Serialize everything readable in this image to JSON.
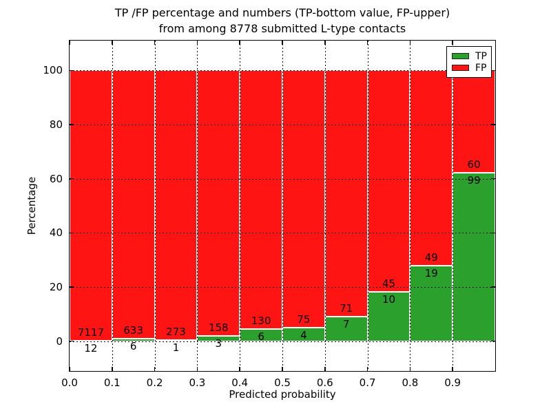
{
  "chart_data": {
    "type": "bar",
    "stacked": true,
    "normalized_to_percent": true,
    "title": "TP /FP percentage and numbers (TP-bottom value, FP-upper)",
    "subtitle": "from among 8778 submitted L-type contacts",
    "xlabel": "Predicted probability",
    "ylabel": "Percentage",
    "total_submitted": 8778,
    "x_tick_labels": [
      "0.0",
      "0.1",
      "0.2",
      "0.3",
      "0.4",
      "0.5",
      "0.6",
      "0.7",
      "0.8",
      "0.9"
    ],
    "y_ticks": [
      0,
      20,
      40,
      60,
      80,
      100
    ],
    "xlim": [
      0,
      1
    ],
    "ylim": [
      -11,
      111
    ],
    "bin_width": 0.1,
    "grid": "dotted",
    "legend_position": "upper-right",
    "legend": [
      {
        "label": "TP",
        "color": "#2ca02c"
      },
      {
        "label": "FP",
        "color": "#ff1414"
      }
    ],
    "colors": {
      "tp": "#2ca02c",
      "fp": "#ff1414",
      "grid": "#000000",
      "background": "#ffffff"
    },
    "bins": [
      {
        "x_start": 0.0,
        "x_end": 0.1,
        "tp": 12,
        "fp": 7117,
        "tp_pct": 0.17,
        "fp_pct": 99.83
      },
      {
        "x_start": 0.1,
        "x_end": 0.2,
        "tp": 6,
        "fp": 633,
        "tp_pct": 0.94,
        "fp_pct": 99.06
      },
      {
        "x_start": 0.2,
        "x_end": 0.3,
        "tp": 1,
        "fp": 273,
        "tp_pct": 0.36,
        "fp_pct": 99.64
      },
      {
        "x_start": 0.3,
        "x_end": 0.4,
        "tp": 3,
        "fp": 158,
        "tp_pct": 1.86,
        "fp_pct": 98.14
      },
      {
        "x_start": 0.4,
        "x_end": 0.5,
        "tp": 6,
        "fp": 130,
        "tp_pct": 4.41,
        "fp_pct": 95.59
      },
      {
        "x_start": 0.5,
        "x_end": 0.6,
        "tp": 4,
        "fp": 75,
        "tp_pct": 5.06,
        "fp_pct": 94.94
      },
      {
        "x_start": 0.6,
        "x_end": 0.7,
        "tp": 7,
        "fp": 71,
        "tp_pct": 8.97,
        "fp_pct": 91.03
      },
      {
        "x_start": 0.7,
        "x_end": 0.8,
        "tp": 10,
        "fp": 45,
        "tp_pct": 18.18,
        "fp_pct": 81.82
      },
      {
        "x_start": 0.8,
        "x_end": 0.9,
        "tp": 19,
        "fp": 49,
        "tp_pct": 27.94,
        "fp_pct": 72.06
      },
      {
        "x_start": 0.9,
        "x_end": 1.0,
        "tp": 99,
        "fp": 60,
        "tp_pct": 62.26,
        "fp_pct": 37.74
      }
    ]
  }
}
